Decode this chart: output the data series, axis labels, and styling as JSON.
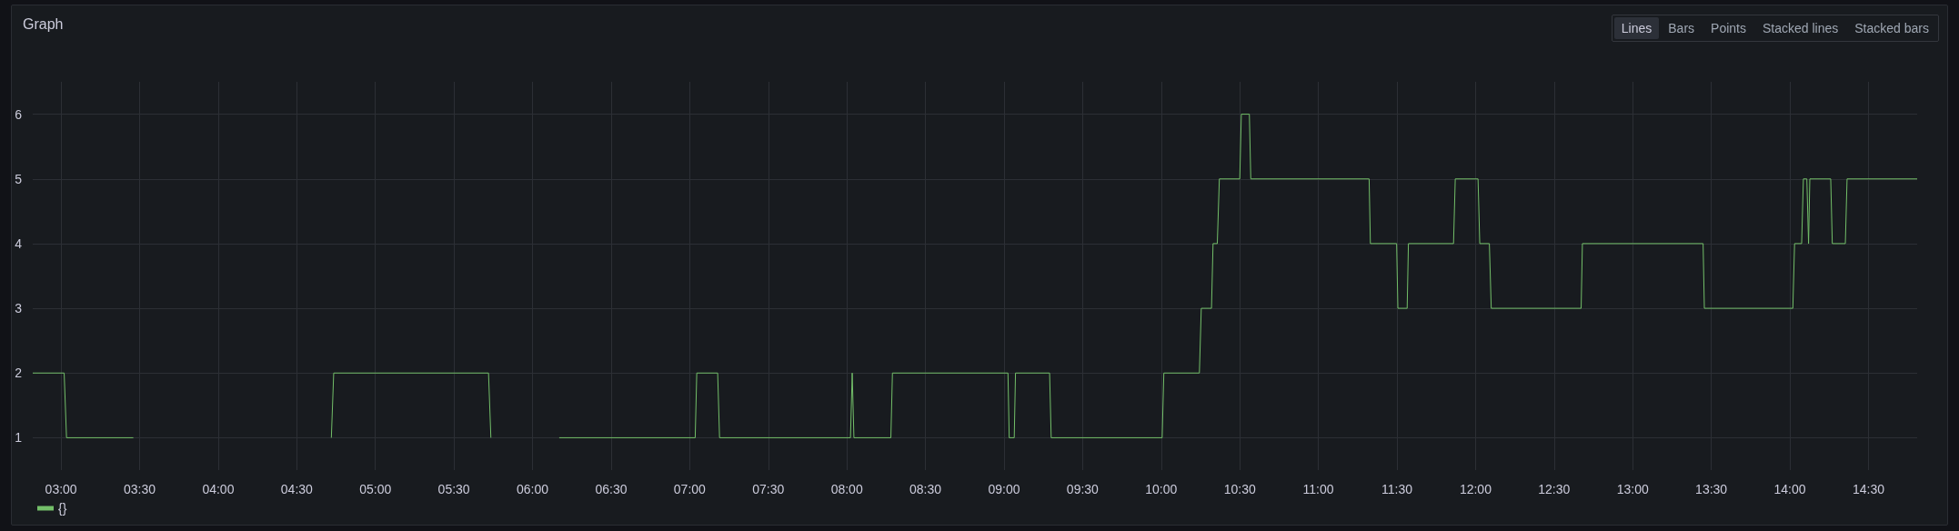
{
  "chart_data": {
    "type": "line",
    "title": "Graph",
    "annotations": [
      "Lines",
      "Bars",
      "Points",
      "Stacked lines",
      "Stacked bars"
    ],
    "x": [
      2.82,
      3.02,
      3.035,
      3.46,
      4.1,
      4.72,
      4.735,
      5.72,
      5.735,
      5.95,
      6.17,
      7.035,
      7.045,
      7.178,
      7.19,
      8.023,
      8.034,
      8.045,
      8.28,
      8.29,
      9.025,
      9.033,
      9.065,
      9.073,
      9.29,
      9.3,
      10.006,
      10.017,
      10.243,
      10.255,
      10.32,
      10.33,
      10.357,
      10.37,
      10.5,
      10.51,
      10.561,
      10.57,
      11.323,
      11.331,
      11.498,
      11.506,
      11.565,
      11.573,
      11.86,
      11.871,
      12.016,
      12.027,
      12.088,
      12.1,
      12.672,
      12.68,
      13.448,
      13.456,
      14.019,
      14.03,
      14.075,
      14.086,
      14.108,
      14.119,
      14.127,
      14.26,
      14.27,
      14.353,
      14.364,
      14.81
    ],
    "series": [
      {
        "name": "{}",
        "color": "#73bf69",
        "values": [
          2,
          2,
          1,
          1,
          null,
          1,
          2,
          2,
          1,
          null,
          1,
          1,
          2,
          2,
          1,
          1,
          2,
          1,
          1,
          2,
          2,
          1,
          1,
          2,
          2,
          1,
          1,
          2,
          2,
          3,
          3,
          4,
          4,
          5,
          5,
          6,
          6,
          5,
          5,
          4,
          4,
          3,
          3,
          4,
          4,
          5,
          5,
          4,
          4,
          3,
          3,
          4,
          4,
          3,
          3,
          4,
          4,
          5,
          5,
          4,
          5,
          5,
          4,
          4,
          5,
          5
        ]
      }
    ],
    "xlim": [
      2.82,
      14.81
    ],
    "xticks": [
      {
        "value": 3,
        "label": "03:00"
      },
      {
        "value": 3.5,
        "label": "03:30"
      },
      {
        "value": 4,
        "label": "04:00"
      },
      {
        "value": 4.5,
        "label": "04:30"
      },
      {
        "value": 5,
        "label": "05:00"
      },
      {
        "value": 5.5,
        "label": "05:30"
      },
      {
        "value": 6,
        "label": "06:00"
      },
      {
        "value": 6.5,
        "label": "06:30"
      },
      {
        "value": 7,
        "label": "07:00"
      },
      {
        "value": 7.5,
        "label": "07:30"
      },
      {
        "value": 8,
        "label": "08:00"
      },
      {
        "value": 8.5,
        "label": "08:30"
      },
      {
        "value": 9,
        "label": "09:00"
      },
      {
        "value": 9.5,
        "label": "09:30"
      },
      {
        "value": 10,
        "label": "10:00"
      },
      {
        "value": 10.5,
        "label": "10:30"
      },
      {
        "value": 11,
        "label": "11:00"
      },
      {
        "value": 11.5,
        "label": "11:30"
      },
      {
        "value": 12,
        "label": "12:00"
      },
      {
        "value": 12.5,
        "label": "12:30"
      },
      {
        "value": 13,
        "label": "13:00"
      },
      {
        "value": 13.5,
        "label": "13:30"
      },
      {
        "value": 14,
        "label": "14:00"
      },
      {
        "value": 14.5,
        "label": "14:30"
      }
    ],
    "ylim": [
      0.5,
      6.5
    ],
    "yticks": [
      1,
      2,
      3,
      4,
      5,
      6
    ],
    "grid": true,
    "legend": "bottom left",
    "marker": "none",
    "line_style": "solid"
  }
}
